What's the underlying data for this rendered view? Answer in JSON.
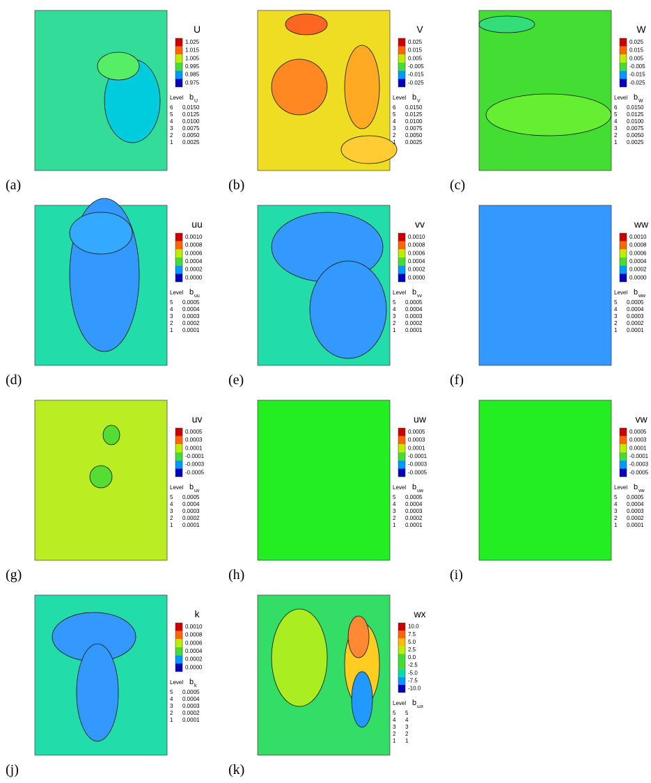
{
  "panels": [
    {
      "label": "(a)",
      "title": "U",
      "ticks": [
        "1.025",
        "1.015",
        "1.005",
        "0.995",
        "0.985",
        "0.975"
      ],
      "level_header": "Level",
      "b": "b",
      "b_sub": "U",
      "rows": [
        [
          "6",
          "0.0150"
        ],
        [
          "5",
          "0.0125"
        ],
        [
          "4",
          "0.0100"
        ],
        [
          "3",
          "0.0075"
        ],
        [
          "2",
          "0.0050"
        ],
        [
          "1",
          "0.0025"
        ]
      ]
    },
    {
      "label": "(b)",
      "title": "V",
      "ticks": [
        "0.025",
        "0.015",
        "0.005",
        "-0.005",
        "-0.015",
        "-0.025"
      ],
      "level_header": "Level",
      "b": "b",
      "b_sub": "V",
      "rows": [
        [
          "6",
          "0.0150"
        ],
        [
          "5",
          "0.0125"
        ],
        [
          "4",
          "0.0100"
        ],
        [
          "3",
          "0.0075"
        ],
        [
          "2",
          "0.0050"
        ],
        [
          "1",
          "0.0025"
        ]
      ]
    },
    {
      "label": "(c)",
      "title": "W",
      "ticks": [
        "0.025",
        "0.015",
        "0.005",
        "-0.005",
        "-0.015",
        "-0.025"
      ],
      "level_header": "Level",
      "b": "b",
      "b_sub": "W",
      "rows": [
        [
          "6",
          "0.0150"
        ],
        [
          "5",
          "0.0125"
        ],
        [
          "4",
          "0.0100"
        ],
        [
          "3",
          "0.0075"
        ],
        [
          "2",
          "0.0050"
        ],
        [
          "1",
          "0.0025"
        ]
      ]
    },
    {
      "label": "(d)",
      "title": "uu",
      "ticks": [
        "0.0010",
        "0.0008",
        "0.0006",
        "0.0004",
        "0.0002",
        "0.0000"
      ],
      "level_header": "Level",
      "b": "b",
      "b_sub": "uu",
      "rows": [
        [
          "5",
          "0.0005"
        ],
        [
          "4",
          "0.0004"
        ],
        [
          "3",
          "0.0003"
        ],
        [
          "2",
          "0.0002"
        ],
        [
          "1",
          "0.0001"
        ]
      ]
    },
    {
      "label": "(e)",
      "title": "vv",
      "ticks": [
        "0.0010",
        "0.0008",
        "0.0006",
        "0.0004",
        "0.0002",
        "0.0000"
      ],
      "level_header": "Level",
      "b": "b",
      "b_sub": "vv",
      "rows": [
        [
          "5",
          "0.0005"
        ],
        [
          "4",
          "0.0004"
        ],
        [
          "3",
          "0.0003"
        ],
        [
          "2",
          "0.0002"
        ],
        [
          "1",
          "0.0001"
        ]
      ]
    },
    {
      "label": "(f)",
      "title": "ww",
      "ticks": [
        "0.0010",
        "0.0008",
        "0.0006",
        "0.0004",
        "0.0002",
        "0.0000"
      ],
      "level_header": "Level",
      "b": "b",
      "b_sub": "ww",
      "rows": [
        [
          "5",
          "0.0005"
        ],
        [
          "4",
          "0.0004"
        ],
        [
          "3",
          "0.0003"
        ],
        [
          "2",
          "0.0002"
        ],
        [
          "1",
          "0.0001"
        ]
      ]
    },
    {
      "label": "(g)",
      "title": "uv",
      "ticks": [
        "0.0005",
        "0.0003",
        "0.0001",
        "-0.0001",
        "-0.0003",
        "-0.0005"
      ],
      "level_header": "Level",
      "b": "b",
      "b_sub": "uv",
      "rows": [
        [
          "5",
          "0.0005"
        ],
        [
          "4",
          "0.0004"
        ],
        [
          "3",
          "0.0003"
        ],
        [
          "2",
          "0.0002"
        ],
        [
          "1",
          "0.0001"
        ]
      ]
    },
    {
      "label": "(h)",
      "title": "uw",
      "ticks": [
        "0.0005",
        "0.0003",
        "0.0001",
        "-0.0001",
        "-0.0003",
        "-0.0005"
      ],
      "level_header": "Level",
      "b": "b",
      "b_sub": "uw",
      "rows": [
        [
          "5",
          "0.0005"
        ],
        [
          "4",
          "0.0004"
        ],
        [
          "3",
          "0.0003"
        ],
        [
          "2",
          "0.0002"
        ],
        [
          "1",
          "0.0001"
        ]
      ]
    },
    {
      "label": "(i)",
      "title": "vw",
      "ticks": [
        "0.0005",
        "0.0003",
        "0.0001",
        "-0.0001",
        "-0.0003",
        "-0.0005"
      ],
      "level_header": "Level",
      "b": "b",
      "b_sub": "vw",
      "rows": [
        [
          "5",
          "0.0005"
        ],
        [
          "4",
          "0.0004"
        ],
        [
          "3",
          "0.0003"
        ],
        [
          "2",
          "0.0002"
        ],
        [
          "1",
          "0.0001"
        ]
      ]
    },
    {
      "label": "(j)",
      "title": "k",
      "ticks": [
        "0.0010",
        "0.0008",
        "0.0006",
        "0.0004",
        "0.0002",
        "0.0000"
      ],
      "level_header": "Level",
      "b": "b",
      "b_sub": "k",
      "rows": [
        [
          "5",
          "0.0005"
        ],
        [
          "4",
          "0.0004"
        ],
        [
          "3",
          "0.0003"
        ],
        [
          "2",
          "0.0002"
        ],
        [
          "1",
          "0.0001"
        ]
      ]
    },
    {
      "label": "(k)",
      "title": "wx",
      "ticks": [
        "10.0",
        "7.5",
        "5.0",
        "2.5",
        "0.0",
        "-2.5",
        "-5.0",
        "-7.5",
        "-10.0"
      ],
      "level_header": "Level",
      "b": "b",
      "b_sub": "ωx",
      "rows": [
        [
          "5",
          "5"
        ],
        [
          "4",
          "4"
        ],
        [
          "3",
          "3"
        ],
        [
          "2",
          "2"
        ],
        [
          "1",
          "1"
        ]
      ]
    }
  ]
}
